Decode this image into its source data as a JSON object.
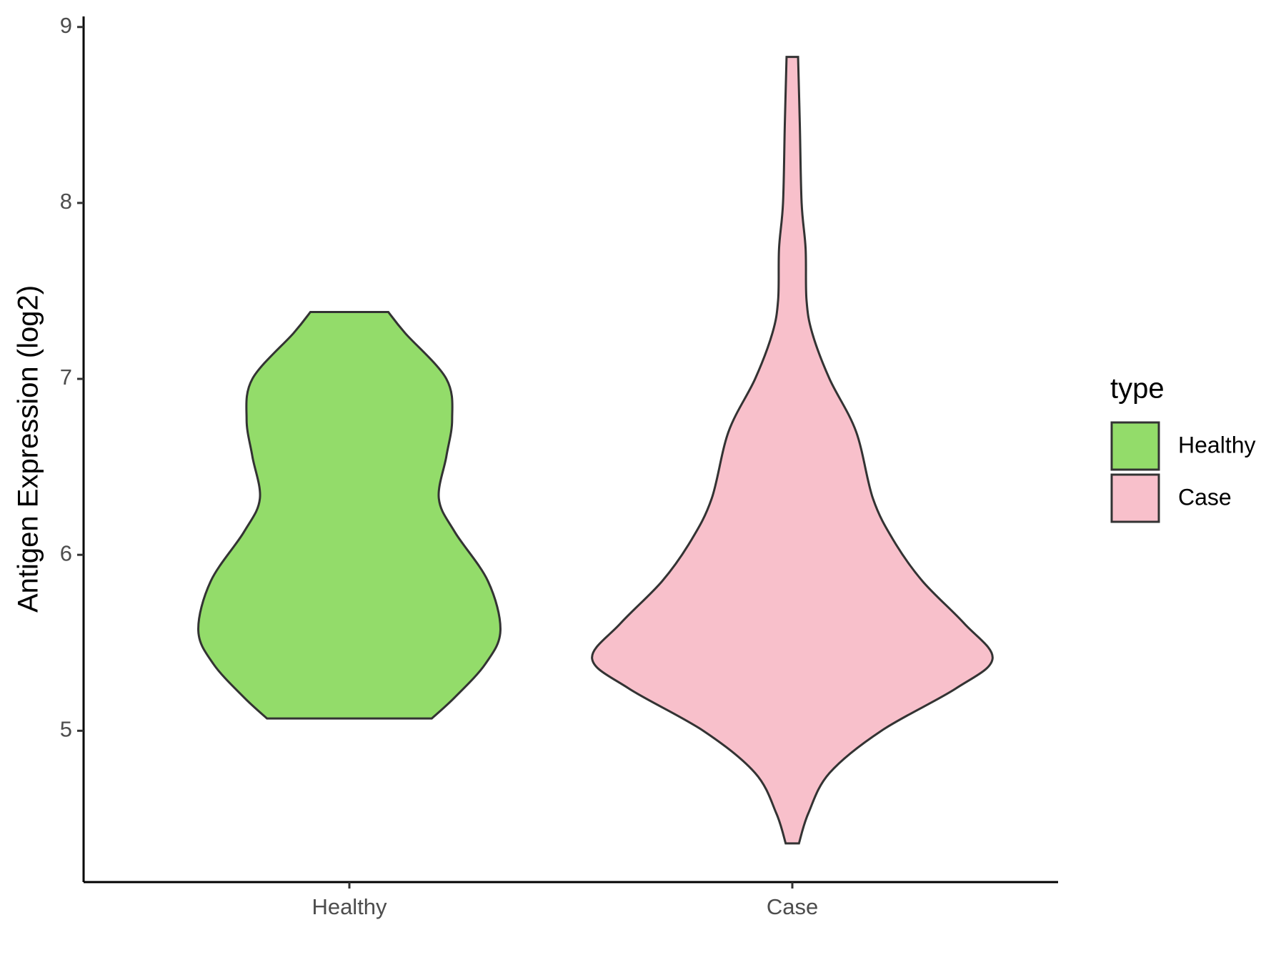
{
  "chart_data": {
    "type": "violin",
    "y_label": "Antigen Expression (log2)",
    "categories": [
      "Healthy",
      "Case"
    ],
    "xlim": [
      0.4,
      2.6
    ],
    "ylim": [
      4.14,
      9.06
    ],
    "yticks": [
      5,
      6,
      7,
      8,
      9
    ],
    "legend_title": "type",
    "legend_position": "right",
    "series": [
      {
        "name": "Healthy",
        "color": "#93dc6a",
        "y": [
          7.38,
          7.26,
          7.0,
          6.77,
          6.56,
          6.32,
          6.13,
          5.85,
          5.57,
          5.38,
          5.19,
          5.07
        ],
        "width": [
          0.088,
          0.126,
          0.219,
          0.232,
          0.219,
          0.202,
          0.238,
          0.313,
          0.341,
          0.307,
          0.238,
          0.186
        ]
      },
      {
        "name": "Case",
        "color": "#f8c0cb",
        "y": [
          8.83,
          8.44,
          8.0,
          7.74,
          7.45,
          7.26,
          7.0,
          6.7,
          6.32,
          6.08,
          5.85,
          5.61,
          5.41,
          5.24,
          5.0,
          4.76,
          4.53,
          4.36
        ],
        "width": [
          0.013,
          0.017,
          0.021,
          0.03,
          0.032,
          0.045,
          0.084,
          0.144,
          0.182,
          0.229,
          0.294,
          0.388,
          0.452,
          0.369,
          0.201,
          0.084,
          0.036,
          0.015
        ]
      }
    ]
  }
}
